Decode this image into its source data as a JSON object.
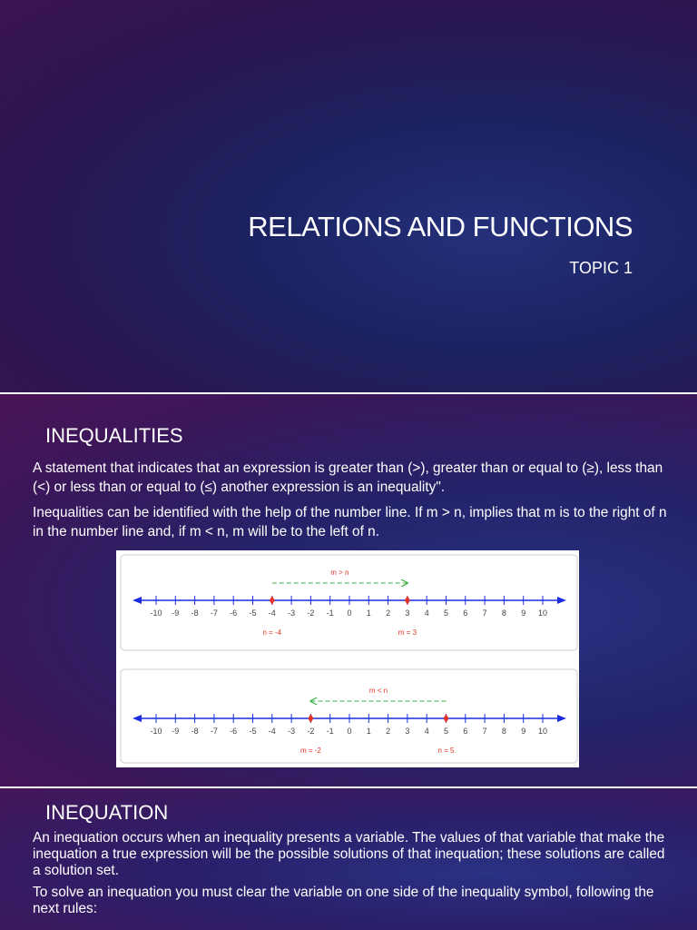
{
  "slide1": {
    "title": "RELATIONS AND FUNCTIONS",
    "subtitle": "TOPIC 1"
  },
  "slide2": {
    "heading": "INEQUALITIES",
    "paragraphs": [
      "A statement that indicates that an expression is greater than (>), greater than or equal to (≥), less than (<) or less than or equal to (≤) another expression is an inequality\".",
      "Inequalities can be identified with the help of the number line. If m > n, implies that m is to the right of n in the number line and, if m < n, m will be to the left of n."
    ],
    "number_lines": [
      {
        "ticks": [
          -10,
          -9,
          -8,
          -7,
          -6,
          -5,
          -4,
          -3,
          -2,
          -1,
          0,
          1,
          2,
          3,
          4,
          5,
          6,
          7,
          8,
          9,
          10
        ],
        "arrow": {
          "label": "m > n",
          "from": -4,
          "to": 3
        },
        "points": [
          {
            "value": -4,
            "label": "n = -4"
          },
          {
            "value": 3,
            "label": "m = 3"
          }
        ]
      },
      {
        "ticks": [
          -10,
          -9,
          -8,
          -7,
          -6,
          -5,
          -4,
          -3,
          -2,
          -1,
          0,
          1,
          2,
          3,
          4,
          5,
          6,
          7,
          8,
          9,
          10
        ],
        "arrow": {
          "label": "m < n",
          "from": 5,
          "to": -2
        },
        "points": [
          {
            "value": -2,
            "label": "m = -2"
          },
          {
            "value": 5,
            "label": "n = 5"
          }
        ]
      }
    ]
  },
  "slide3": {
    "heading": "INEQUATION",
    "paragraphs": [
      "An inequation occurs when an inequality presents a variable. The values of that variable that make the inequation a true expression will be the possible solutions of that inequation; these solutions are called a solution set.",
      "To solve an inequation you must clear the variable on one side of the inequality symbol, following the next rules:"
    ]
  }
}
